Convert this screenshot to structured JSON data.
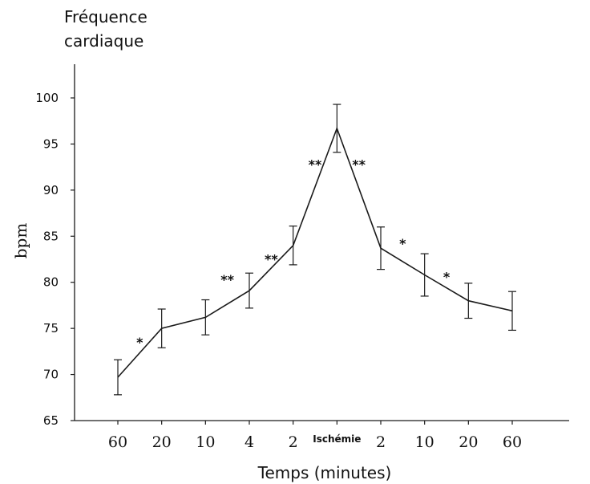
{
  "chart_data": {
    "type": "line",
    "title": "Fréquence cardiaque",
    "title_lines": [
      "Fréquence",
      "cardiaque"
    ],
    "xlabel": "Temps (minutes)",
    "ylabel": "bpm",
    "ylim": [
      65,
      100
    ],
    "yticks": [
      "65",
      "70",
      "75",
      "80",
      "85",
      "90",
      "95",
      "100"
    ],
    "categories": [
      "60",
      "20",
      "10",
      "4",
      "2",
      "Ischémie",
      "2",
      "10",
      "20",
      "60"
    ],
    "series": [
      {
        "values": [
          69.7,
          75.0,
          76.2,
          79.1,
          84.0,
          96.7,
          83.7,
          80.8,
          78.0,
          76.9
        ],
        "error": [
          1.9,
          2.1,
          1.9,
          1.9,
          2.1,
          2.6,
          2.3,
          2.3,
          1.9,
          2.1
        ]
      }
    ],
    "annotations": [
      {
        "text": "*",
        "between": [
          0,
          1
        ],
        "y": 73.7
      },
      {
        "text": "**",
        "between": [
          2,
          3
        ],
        "y": 80.5
      },
      {
        "text": "**",
        "between": [
          3,
          4
        ],
        "y": 82.7
      },
      {
        "text": "**",
        "between": [
          4,
          5
        ],
        "y": 93.0
      },
      {
        "text": "**",
        "between": [
          5,
          6
        ],
        "y": 93.0
      },
      {
        "text": "*",
        "between": [
          6,
          7
        ],
        "y": 84.4
      },
      {
        "text": "*",
        "between": [
          7,
          8
        ],
        "y": 80.8
      }
    ],
    "grid": false,
    "legend": "none",
    "line_color": "#1a1a1a"
  }
}
